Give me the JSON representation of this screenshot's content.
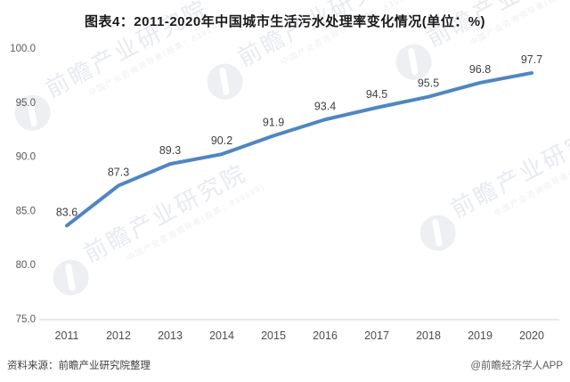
{
  "title": "图表4：2011-2020年中国城市生活污水处理率变化情况(单位：%)",
  "footer": {
    "source": "资料来源：前瞻产业研究院整理",
    "credit": "@前瞻经济学人APP"
  },
  "watermark": {
    "text": "前瞻产业研究院",
    "subtext": "中国产业咨询领导者(股票：839599)"
  },
  "colors": {
    "line": "#4f86c2",
    "data_label": "#3f3f3f",
    "axis_text": "#595959",
    "axis_line": "#d9d9d9",
    "title_text": "#1a1a1a",
    "watermark_text": "#e7eaf0"
  },
  "chart_data": {
    "type": "line",
    "title": "图表4：2011-2020年中国城市生活污水处理率变化情况(单位：%)",
    "categories": [
      "2011",
      "2012",
      "2013",
      "2014",
      "2015",
      "2016",
      "2017",
      "2018",
      "2019",
      "2020"
    ],
    "values": [
      83.6,
      87.3,
      89.3,
      90.2,
      91.9,
      93.4,
      94.5,
      95.5,
      96.8,
      97.7
    ],
    "unit": "%",
    "xlabel": "",
    "ylabel": "",
    "ylim": [
      75.0,
      100.0
    ],
    "yticks": [
      100.0,
      95.0,
      90.0,
      85.0,
      80.0,
      75.0
    ],
    "grid": false,
    "legend_position": "none",
    "data_labels": true
  }
}
